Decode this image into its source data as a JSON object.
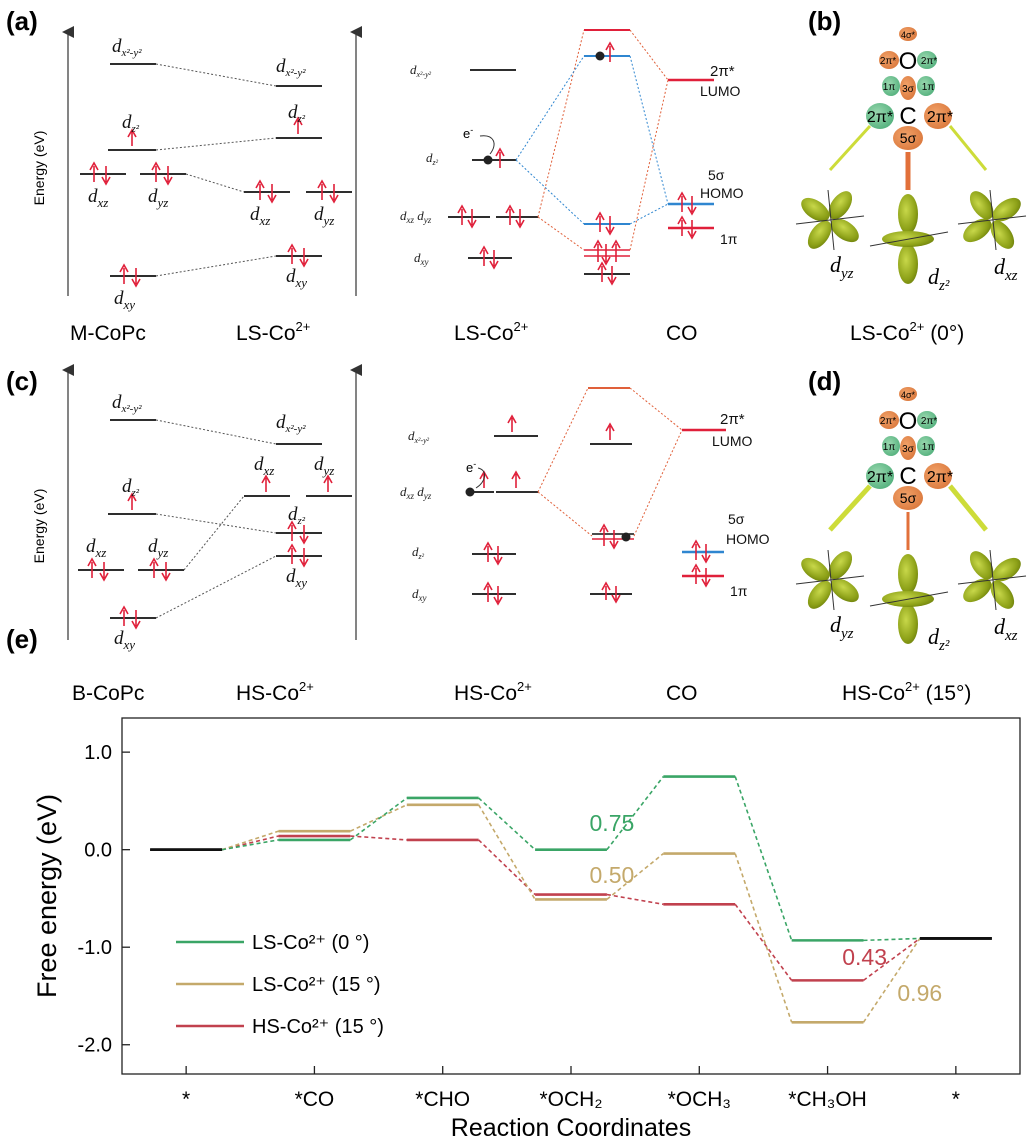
{
  "panels": {
    "a_label": "(a)",
    "b_label": "(b)",
    "c_label": "(c)",
    "d_label": "(d)",
    "e_label": "(e)"
  },
  "panel_a": {
    "energy_axis_label": "Energy (eV)",
    "left_group_label": "M-CoPc",
    "right_group_label": "LS-Co",
    "right_group_sup": "2+"
  },
  "panel_a_mo": {
    "metal_label": "LS-Co",
    "metal_sup": "2+",
    "ligand_label": "CO",
    "lumo_top": "2π*",
    "lumo_bot": "LUMO",
    "homo_top": "5σ",
    "homo_bot": "HOMO",
    "pi_label": "1π",
    "electron_label": "e"
  },
  "panel_b": {
    "caption": "LS-Co",
    "caption_sup": "2+",
    "caption_tail": " (0°)"
  },
  "panel_c": {
    "energy_axis_label": "Energy (eV)",
    "left_group_label": "B-CoPc",
    "right_group_label": "HS-Co",
    "right_group_sup": "2+"
  },
  "panel_c_mo": {
    "metal_label": "HS-Co",
    "metal_sup": "2+",
    "ligand_label": "CO",
    "lumo_top": "2π*",
    "lumo_bot": "LUMO",
    "homo_top": "5σ",
    "homo_bot": "HOMO",
    "pi_label": "1π",
    "electron_label": "e"
  },
  "panel_d": {
    "caption": "HS-Co",
    "caption_sup": "2+",
    "caption_tail": " (15°)"
  },
  "orbital_cartoon": {
    "O": "O",
    "C": "C",
    "four_sigma": "4σ*",
    "two_pi": "2π*",
    "one_pi": "1π",
    "three_sigma": "3σ",
    "five_sigma": "5σ",
    "dyz": "yz",
    "dxz": "xz",
    "dz2": "z²"
  },
  "chart_data": {
    "type": "line",
    "title": "",
    "xlabel": "Reaction Coordinates",
    "ylabel": "Free energy (eV)",
    "ylim": [
      -2.3,
      1.35
    ],
    "yticks": [
      "1.0",
      "0.0",
      "-1.0",
      "-2.0"
    ],
    "categories": [
      "*",
      "*CO",
      "*CHO",
      "*OCH₂",
      "*OCH₃",
      "*CH₃OH",
      "*"
    ],
    "series": [
      {
        "name": "LS-Co²⁺ (0 °)",
        "color": "#3aa566",
        "values": [
          0.0,
          0.1,
          0.53,
          0.0,
          0.75,
          -0.93,
          -0.91
        ]
      },
      {
        "name": "LS-Co²⁺ (15 °)",
        "color": "#c4a96b",
        "values": [
          0.0,
          0.19,
          0.46,
          -0.51,
          -0.04,
          -1.77,
          -0.91
        ]
      },
      {
        "name": "HS-Co²⁺ (15 °)",
        "color": "#c1414e",
        "values": [
          0.0,
          0.14,
          0.1,
          -0.46,
          -0.56,
          -1.34,
          -0.91
        ]
      }
    ],
    "annotations": [
      {
        "text": "0.75",
        "color": "#3aa566"
      },
      {
        "text": "0.50",
        "color": "#c4a96b"
      },
      {
        "text": "0.43",
        "color": "#c1414e"
      },
      {
        "text": "0.96",
        "color": "#c4a96b"
      }
    ],
    "legend_placement": "bottom-left",
    "grid": false
  }
}
